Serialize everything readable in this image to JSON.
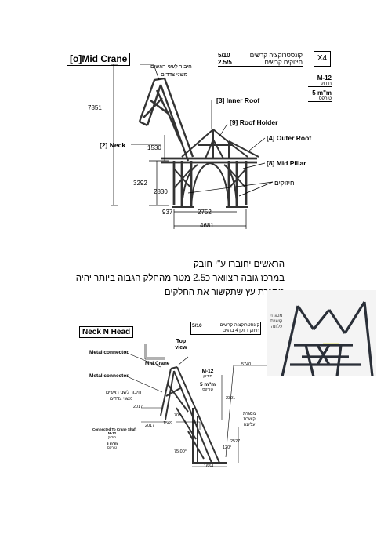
{
  "top": {
    "title": "[o]Mid Crane",
    "header_hebrew": "קונסטרוקציה קרשים",
    "header_hebrew2": "חיזוקים   קרשים",
    "header_frac1": "5/10",
    "header_frac2": "2.5/5",
    "multiplier": "X4",
    "spec_m12": "M-12",
    "spec_m12_heb": "חידוק",
    "spec_torque": "5 m\"m",
    "spec_torque_heb": "טורקס",
    "heads_note": "חיבור לשני ראשים",
    "heads_note2": "משני צדדים",
    "labels": {
      "inner_roof": "[3] Inner Roof",
      "roof_holder": "[9] Roof Holder",
      "outer_roof": "[4] Outer Roof",
      "mid_pillar": "[8] Mid Pillar",
      "neck": "[2] Neck",
      "reinforcements": "חיזוקים"
    },
    "dims": {
      "total_height": "7851",
      "d1530": "1530",
      "d3292": "3292",
      "d2830": "2830",
      "d937": "937",
      "d2752": "2752",
      "d4681": "4681"
    }
  },
  "note": {
    "line1": "הראשים יחוברו ע\"י חובק",
    "line2": "במרכז גובה הצוואר כ2.5 מטר מהחלק הגבוה ביותר יהיה",
    "line3": "מסגרת עץ שתקשור את החלקים"
  },
  "photo": {
    "label1": "מסגרת",
    "label2": "קושרת",
    "label3": "עליונה"
  },
  "bottom": {
    "title": "Neck N Head",
    "header_frac": "5/10",
    "header_hebrew": "קונסטרוקציה קרשים",
    "header_hebrew2": "חיזוק דיוקן 4 ברגים",
    "metal_connector_1": "Metal connector",
    "metal_connector_2": "Metal connector",
    "top_view": "Top view",
    "mid_crane": "Mid Crane",
    "spec_m12": "M-12",
    "spec_m12_heb": "חידוק",
    "spec_torque": "5 m\"m",
    "spec_torque_heb": "טורקס",
    "heads_note": "חיבור לשני ראשים",
    "heads_note2": "משני צדדים",
    "connected": "Connected To Crane Shaft",
    "connected_m12": "M-12",
    "connected_heb": "חידוק",
    "connected_torque": "5 m\"m",
    "connected_torque_heb": "טורקס",
    "frame_label1": "מסגרת",
    "frame_label2": "קושרת",
    "frame_label3": "עליונה",
    "dims": {
      "d5740": "5740",
      "d2391": "2391",
      "d2017a": "2017",
      "d2017b": "2017",
      "d1569": "1569",
      "d2527": "2527",
      "d1654": "1654",
      "d75": "75.00°",
      "d120": "120°",
      "d70": "70°"
    }
  }
}
